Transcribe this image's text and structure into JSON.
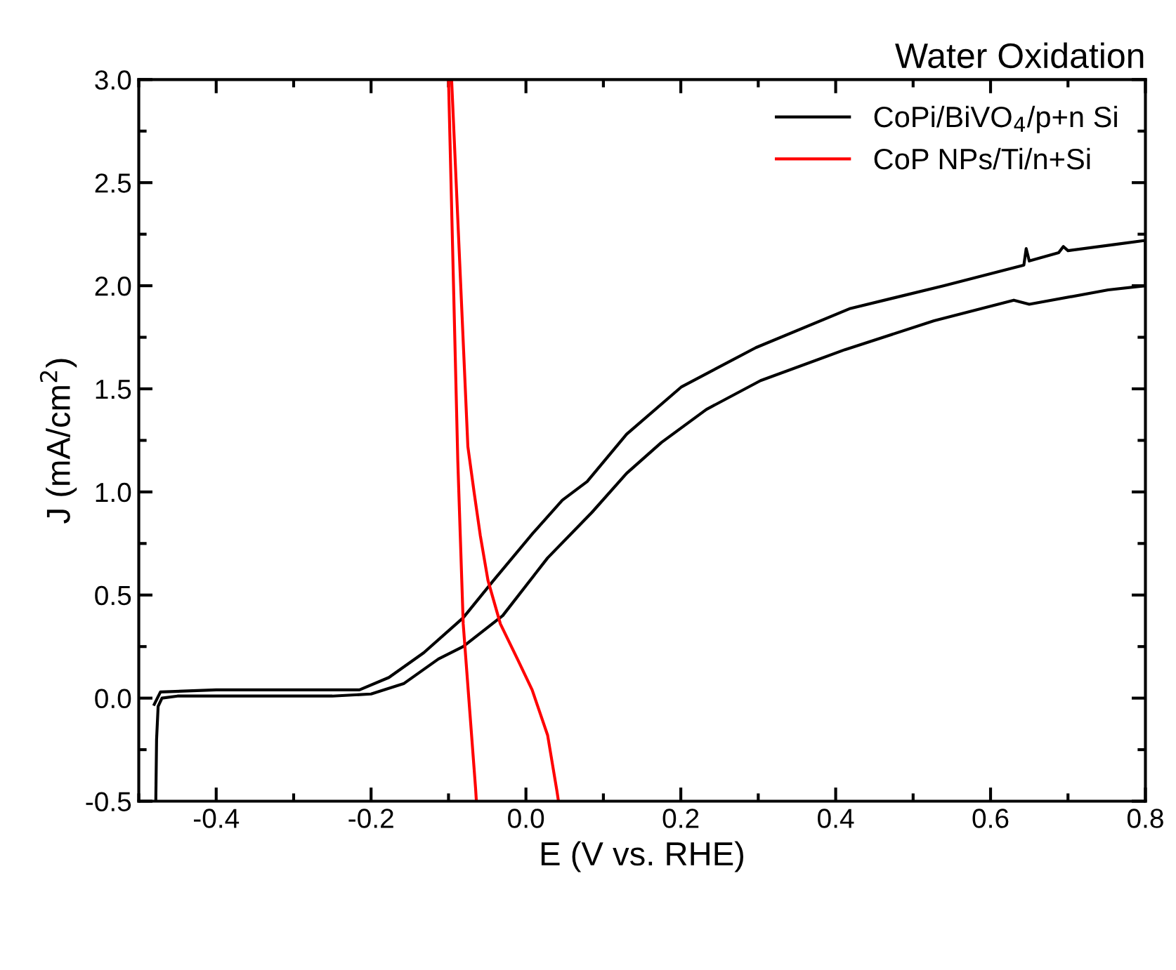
{
  "chart_data": {
    "type": "line",
    "title": "Water Oxidation",
    "xlabel": "E (V vs. RHE)",
    "ylabel": "J (mA/cm$^{2}$)",
    "xlim": [
      -0.5,
      0.8
    ],
    "ylim": [
      -0.5,
      3.0
    ],
    "xticks": [
      {
        "value": -0.5,
        "label": null
      },
      -0.4,
      {
        "value": -0.3,
        "label": null
      },
      -0.2,
      {
        "value": -0.1,
        "label": null
      },
      {
        "value": 0,
        "label": "0.0"
      },
      {
        "value": 0.1,
        "label": null
      },
      0.2,
      {
        "value": 0.3,
        "label": null
      },
      0.4,
      {
        "value": 0.5,
        "label": null
      },
      0.6,
      {
        "value": 0.7,
        "label": null
      },
      0.8
    ],
    "yticks": [
      -0.5,
      {
        "value": -0.25,
        "label": null
      },
      {
        "value": 0,
        "label": "0.0"
      },
      {
        "value": 0.25,
        "label": null
      },
      0.5,
      {
        "value": 0.75,
        "label": null
      },
      {
        "value": 1,
        "label": "1.0"
      },
      {
        "value": 1.25,
        "label": null
      },
      1.5,
      {
        "value": 1.75,
        "label": null
      },
      {
        "value": 2,
        "label": "2.0"
      },
      {
        "value": 2.25,
        "label": null
      },
      2.5,
      {
        "value": 2.75,
        "label": null
      },
      {
        "value": 3,
        "label": "3.0"
      }
    ],
    "grid": false,
    "legend": "top right",
    "marker": "none",
    "line_style": "solid",
    "series": [
      {
        "name": "CoPi/BiVO$_{4}$/p+n Si",
        "color": "#000000",
        "x": [
          -0.478,
          -0.477,
          -0.475,
          -0.47,
          -0.45,
          -0.35,
          -0.25,
          -0.2,
          -0.158,
          -0.113,
          -0.081,
          -0.03,
          0.028,
          0.085,
          0.13,
          0.175,
          0.233,
          0.303,
          0.412,
          0.527,
          0.63,
          0.65,
          0.752,
          0.8,
          0.8,
          0.76,
          0.7,
          0.694,
          0.688,
          0.65,
          0.646,
          0.643,
          0.54,
          0.419,
          0.297,
          0.201,
          0.13,
          0.079,
          0.047,
          0.009,
          -0.042,
          -0.081,
          -0.132,
          -0.177,
          -0.215,
          -0.3,
          -0.4,
          -0.472,
          -0.48
        ],
        "values": [
          -0.5,
          -0.2,
          -0.04,
          0.0,
          0.01,
          0.01,
          0.01,
          0.02,
          0.07,
          0.19,
          0.25,
          0.4,
          0.68,
          0.9,
          1.09,
          1.24,
          1.4,
          1.54,
          1.69,
          1.83,
          1.93,
          1.91,
          1.98,
          2.0,
          2.22,
          2.2,
          2.17,
          2.19,
          2.16,
          2.12,
          2.18,
          2.1,
          2.0,
          1.89,
          1.7,
          1.51,
          1.28,
          1.05,
          0.96,
          0.8,
          0.57,
          0.39,
          0.22,
          0.1,
          0.04,
          0.04,
          0.04,
          0.03,
          -0.03
        ]
      },
      {
        "name": "CoP NPs/Ti/n+Si",
        "color": "#ff0000",
        "x": [
          0.042,
          0.04,
          0.028,
          0.008,
          -0.011,
          -0.033,
          -0.049,
          -0.059,
          -0.067,
          -0.075,
          -0.096,
          -0.1,
          -0.088,
          -0.081,
          -0.065,
          -0.064
        ],
        "values": [
          -0.5,
          -0.45,
          -0.18,
          0.04,
          0.19,
          0.36,
          0.57,
          0.79,
          1.0,
          1.22,
          3.0,
          3.0,
          1.15,
          0.36,
          -0.44,
          -0.5
        ]
      }
    ]
  }
}
